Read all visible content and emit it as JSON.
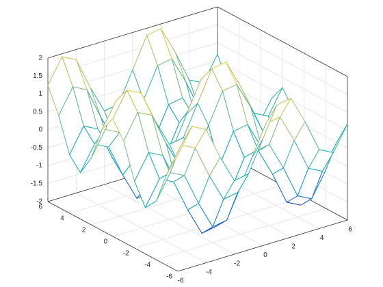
{
  "chart_data": {
    "type": "mesh",
    "x": [
      -6,
      -5,
      -4,
      -3,
      -2,
      -1,
      0,
      1,
      2,
      3,
      4,
      5,
      6
    ],
    "y": [
      -6,
      -5,
      -4,
      -3,
      -2,
      -1,
      0,
      1,
      2,
      3,
      4,
      5,
      6
    ],
    "z": [
      [
        1.24,
        1.92,
        1.72,
        0.82,
        0.05,
        0.12,
        0.96,
        1.8,
        1.87,
        1.1,
        0.2,
        0,
        0.68
      ],
      [
        0.56,
        1.24,
        1.04,
        0.14,
        -0.63,
        -0.56,
        0.28,
        1.12,
        1.19,
        0.42,
        -0.48,
        -0.68,
        0
      ],
      [
        -0.37,
        0.31,
        0.11,
        -0.79,
        -1.56,
        -1.49,
        -0.65,
        0.19,
        0.26,
        -0.51,
        -1.41,
        -1.61,
        -0.93
      ],
      [
        -0.71,
        -0.03,
        -0.23,
        -1.13,
        -1.9,
        -1.83,
        -0.99,
        -0.15,
        -0.08,
        -0.85,
        -1.75,
        -1.95,
        -1.27
      ],
      [
        -0.14,
        0.54,
        0.34,
        -0.56,
        -1.33,
        -1.26,
        -0.42,
        0.42,
        0.49,
        -0.28,
        -1.18,
        -1.38,
        -0.7
      ],
      [
        0.82,
        1.5,
        1.3,
        0.4,
        -0.37,
        -0.3,
        0.54,
        1.38,
        1.45,
        0.68,
        -0.22,
        -0.42,
        0.26
      ],
      [
        1.28,
        1.96,
        1.76,
        0.86,
        0.09,
        0.16,
        1,
        1.84,
        1.91,
        1.14,
        0.24,
        0.04,
        0.72
      ],
      [
        0.82,
        1.5,
        1.3,
        0.4,
        -0.37,
        -0.3,
        0.54,
        1.38,
        1.45,
        0.68,
        -0.22,
        -0.42,
        0.26
      ],
      [
        -0.14,
        0.54,
        0.34,
        -0.56,
        -1.33,
        -1.26,
        -0.42,
        0.42,
        0.49,
        -0.28,
        -1.18,
        -1.38,
        -0.7
      ],
      [
        -0.71,
        -0.03,
        -0.23,
        -1.13,
        -1.9,
        -1.83,
        -0.99,
        -0.15,
        -0.08,
        -0.85,
        -1.75,
        -1.95,
        -1.27
      ],
      [
        -0.37,
        0.31,
        0.11,
        -0.79,
        -1.56,
        -1.49,
        -0.65,
        0.19,
        0.26,
        -0.51,
        -1.41,
        -1.61,
        -0.93
      ],
      [
        0.56,
        1.24,
        1.04,
        0.14,
        -0.63,
        -0.56,
        0.28,
        1.12,
        1.19,
        0.42,
        -0.48,
        -0.68,
        0
      ],
      [
        1.24,
        1.92,
        1.72,
        0.82,
        0.05,
        0.12,
        0.96,
        1.8,
        1.87,
        1.1,
        0.2,
        0,
        0.68
      ]
    ],
    "xlim": [
      -6,
      6
    ],
    "ylim": [
      -6,
      6
    ],
    "zlim": [
      -2,
      2
    ],
    "xticks": [
      -6,
      -4,
      -2,
      0,
      2,
      4,
      6
    ],
    "yticks": [
      -6,
      -4,
      -2,
      0,
      2,
      4,
      6
    ],
    "zticks": [
      -2,
      -1.5,
      -1,
      -0.5,
      0,
      0.5,
      1,
      1.5,
      2
    ],
    "grid": true,
    "colormap": [
      "#352a87",
      "#0f5cdd",
      "#1481d6",
      "#06a7c6",
      "#38b99e",
      "#92bf73",
      "#d9ba56",
      "#f9fb0e"
    ]
  }
}
